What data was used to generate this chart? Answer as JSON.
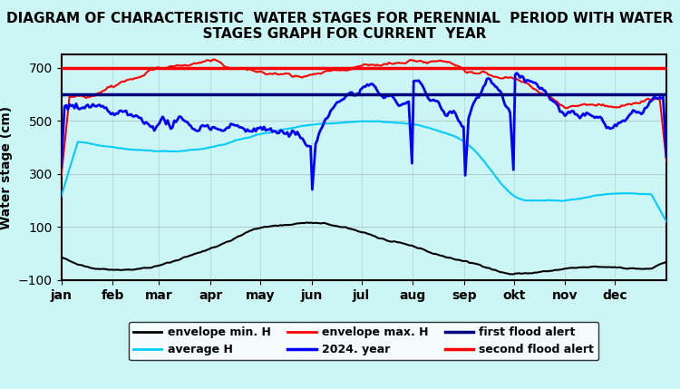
{
  "title": "DIAGRAM OF CHARACTERISTIC  WATER STAGES FOR PERENNIAL  PERIOD WITH WATER\n  STAGES GRAPH FOR CURRENT  YEAR",
  "ylabel": "Water stage (cm)",
  "background_color": "#ccf5f5",
  "ylim": [
    -100,
    750
  ],
  "yticks": [
    -100,
    100,
    300,
    500,
    700
  ],
  "months": [
    "jan",
    "feb",
    "mar",
    "apr",
    "may",
    "jun",
    "jul",
    "aug",
    "sep",
    "okt",
    "nov",
    "dec"
  ],
  "first_flood_alert": 600,
  "second_flood_alert": 700,
  "envelope_min_color": "#000000",
  "envelope_max_color": "#ff0000",
  "average_color": "#00ccff",
  "year2024_color": "#0000ff",
  "first_alert_color": "#000080",
  "second_alert_color": "#ff0000"
}
